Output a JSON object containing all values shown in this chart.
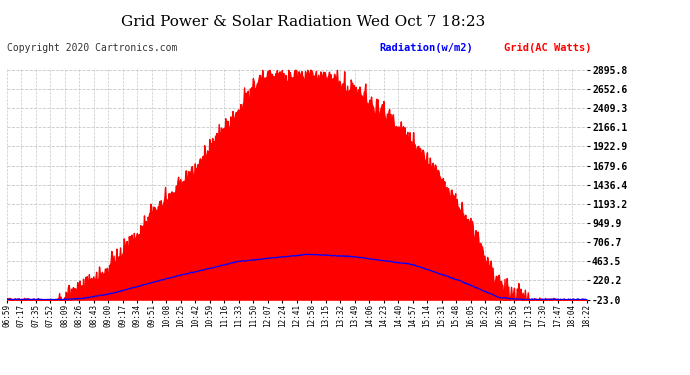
{
  "title": "Grid Power & Solar Radiation Wed Oct 7 18:23",
  "copyright": "Copyright 2020 Cartronics.com",
  "legend_radiation": "Radiation(w/m2)",
  "legend_grid": "Grid(AC Watts)",
  "y_ticks": [
    -23.0,
    220.2,
    463.5,
    706.7,
    949.9,
    1193.2,
    1436.4,
    1679.6,
    1922.9,
    2166.1,
    2409.3,
    2652.6,
    2895.8
  ],
  "x_labels": [
    "06:59",
    "07:17",
    "07:35",
    "07:52",
    "08:09",
    "08:26",
    "08:43",
    "09:00",
    "09:17",
    "09:34",
    "09:51",
    "10:08",
    "10:25",
    "10:42",
    "10:59",
    "11:16",
    "11:33",
    "11:50",
    "12:07",
    "12:24",
    "12:41",
    "12:58",
    "13:15",
    "13:32",
    "13:49",
    "14:06",
    "14:23",
    "14:40",
    "14:57",
    "15:14",
    "15:31",
    "15:48",
    "16:05",
    "16:22",
    "16:39",
    "16:56",
    "17:13",
    "17:30",
    "17:47",
    "18:04",
    "18:22"
  ],
  "bg_color": "#ffffff",
  "grid_color": "#c8c8c8",
  "fill_color": "#ff0000",
  "line_color": "#0000ff",
  "title_color": "#000000",
  "copyright_color": "#333333",
  "ymin": -23.0,
  "ymax": 2895.8,
  "n_points": 800
}
